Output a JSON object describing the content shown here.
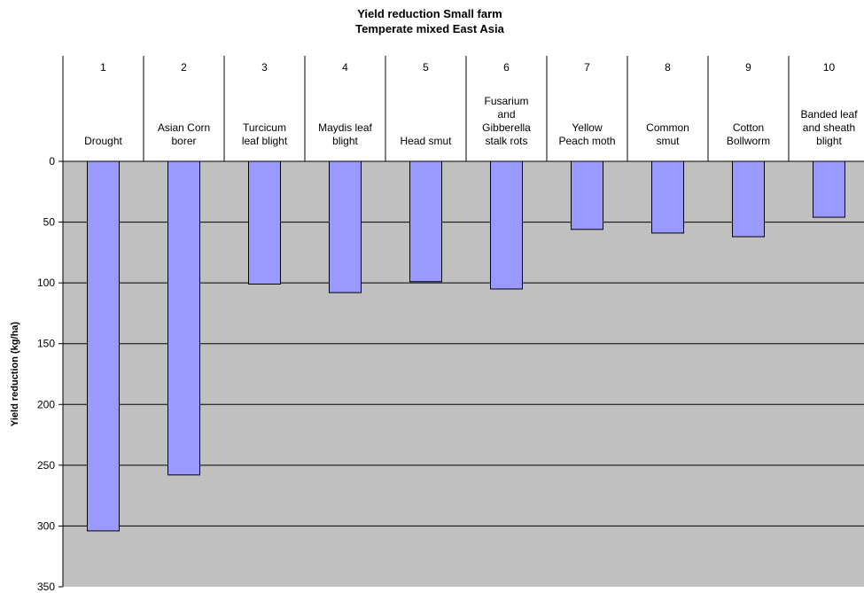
{
  "chart_data": {
    "type": "bar",
    "title": [
      "Yield reduction Small  farm",
      "Temperate mixed East Asia"
    ],
    "xlabel": "",
    "ylabel": "Yield reduction (kg/ha)",
    "ylim": [
      0,
      350
    ],
    "yticks": [
      "0",
      "50",
      "100",
      "150",
      "200",
      "250",
      "300",
      "350"
    ],
    "y_inverted": true,
    "x_axis_position": "top",
    "grid": true,
    "plot_background": "#c0c0c0",
    "bar_color": "#9999ff",
    "categories": [
      "1",
      "2",
      "3",
      "4",
      "5",
      "6",
      "7",
      "8",
      "9",
      "10"
    ],
    "category_labels": [
      [
        "Drought"
      ],
      [
        "Asian Corn",
        "borer"
      ],
      [
        "Turcicum",
        "leaf blight"
      ],
      [
        "Maydis leaf",
        "blight"
      ],
      [
        "Head smut"
      ],
      [
        "Fusarium",
        "and",
        "Gibberella",
        "stalk rots"
      ],
      [
        "Yellow",
        "Peach moth"
      ],
      [
        "Common",
        "smut"
      ],
      [
        "Cotton",
        "Bollworm"
      ],
      [
        "Banded leaf",
        "and sheath",
        "blight"
      ]
    ],
    "values": [
      304,
      258,
      101,
      108,
      99,
      105,
      56,
      59,
      62,
      46
    ]
  }
}
